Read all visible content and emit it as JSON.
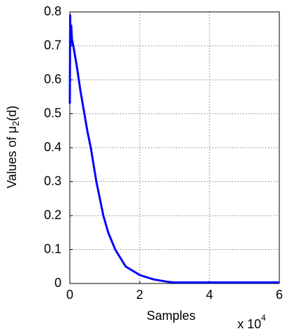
{
  "chart_data": {
    "type": "line",
    "x_label": "Samples",
    "x_scale_label": "x 10",
    "x_scale_exponent": "4",
    "y_label_parts": [
      "Values of μ",
      "2",
      "(d)"
    ],
    "x": [
      0,
      0.01,
      0.02,
      0.04,
      0.06,
      0.1,
      0.2,
      0.3,
      0.4,
      0.5,
      0.6,
      0.76,
      0.96,
      1.1,
      1.3,
      1.6,
      2.0,
      2.4,
      2.8,
      3.0,
      4,
      5,
      6
    ],
    "series": [
      {
        "color": "#0000ff",
        "values": [
          0.53,
          0.79,
          0.7,
          0.76,
          0.72,
          0.7,
          0.64,
          0.57,
          0.51,
          0.45,
          0.4,
          0.3,
          0.2,
          0.15,
          0.1,
          0.05,
          0.025,
          0.012,
          0.005,
          0.003,
          0.003,
          0.003,
          0.003
        ]
      }
    ],
    "xlim": [
      0,
      6
    ],
    "xticks": [
      0,
      2,
      4,
      6
    ],
    "ylim": [
      0,
      0.8
    ],
    "yticks": [
      0,
      0.1,
      0.2,
      0.3,
      0.4,
      0.5,
      0.6,
      0.7,
      0.8
    ],
    "grid": true
  }
}
